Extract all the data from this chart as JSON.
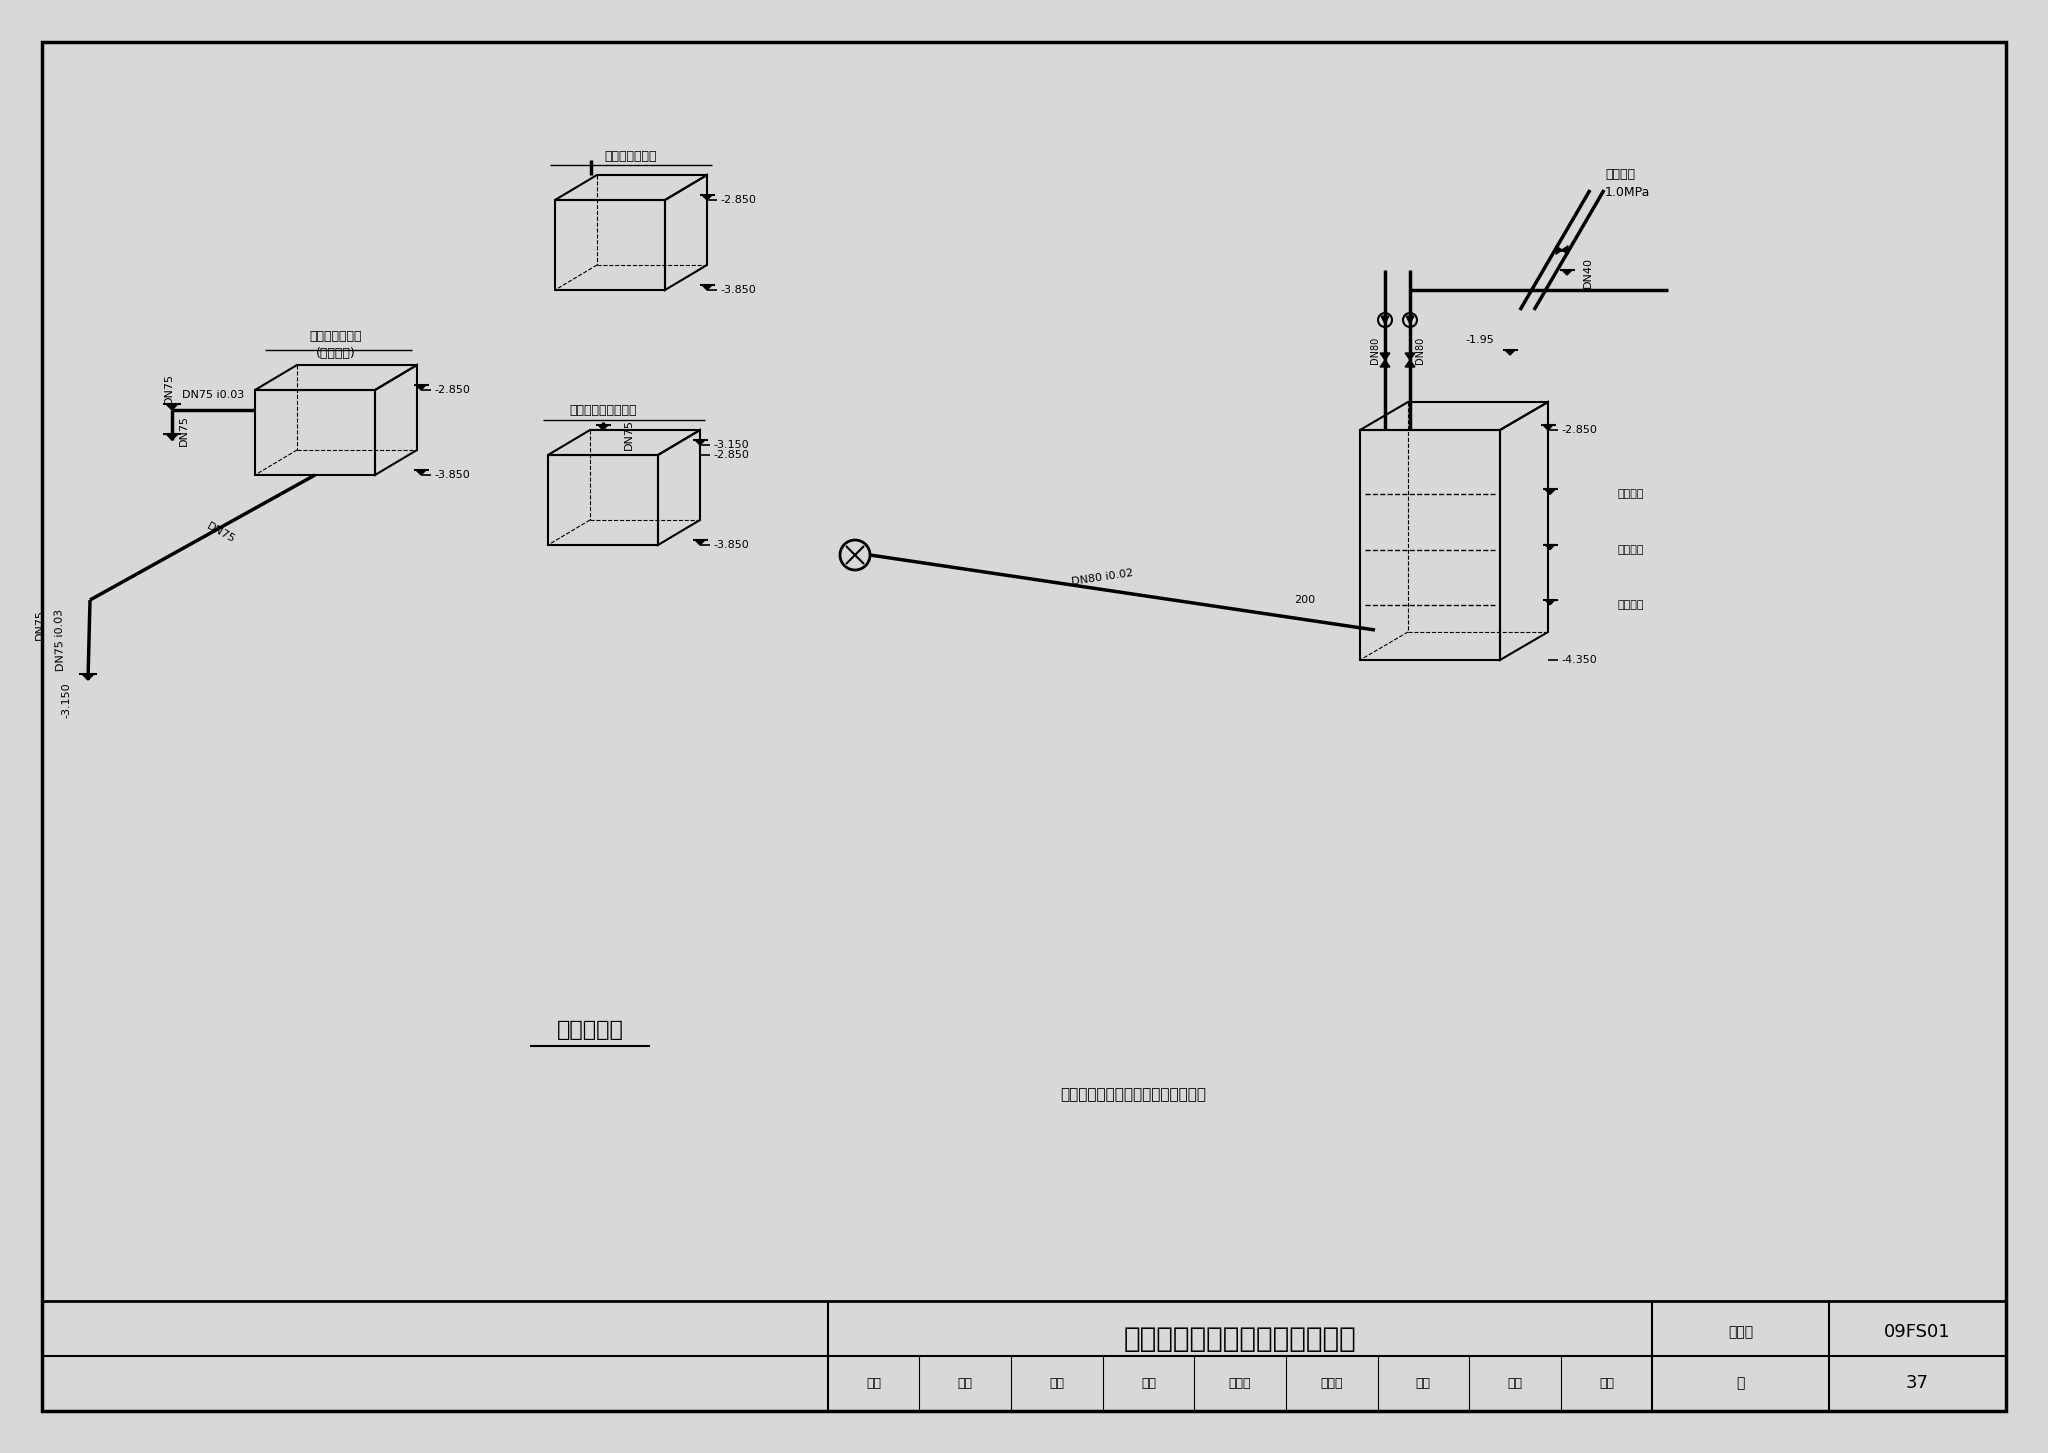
{
  "bg_color": "#d8d8d8",
  "paper_color": "#f8f8f8",
  "title": "乙类二等人员掩蔽所排水轴测图",
  "subtitle": "排水轴测图",
  "note": "说明：污水泵采用手动控制启、停。",
  "catalog_id": "09FS01",
  "page_no": "37",
  "lbox_label1": "洗消污水集水坑",
  "lbox_label2": "(进风口部)",
  "mtop_label": "洗消污水集水坑",
  "mbot_label": "口部洗消污水集水坑",
  "valve_label1": "防护阀门",
  "valve_label2": "1.0MPa",
  "wl_labels": [
    "报警水位",
    "启泵水位",
    "停泵水位"
  ],
  "author_row": [
    "审核",
    "金鹏",
    "年呀",
    "校对",
    "张爱华",
    "张爱华",
    "设计",
    "杨晶",
    "杨晶"
  ]
}
